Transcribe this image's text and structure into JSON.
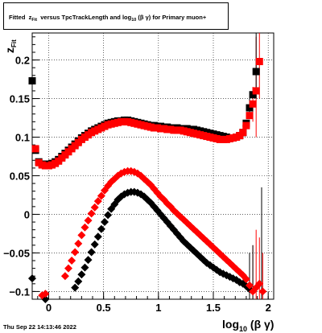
{
  "title": {
    "fitted": "Fitted",
    "z": "z",
    "z_sub": "Fit",
    "mid": "versus TpcTrackLength and log",
    "log_sub": "10",
    "tail": "(β  γ) for Primary muon+"
  },
  "footer": "Thu Sep 22 14:13:46 2022",
  "x_label": {
    "main": "log",
    "sub": "10",
    "tail": "(β γ)"
  },
  "y_label": {
    "main": "z",
    "sub": "Fit"
  },
  "chart_data": {
    "type": "scatter",
    "xlim": [
      -0.15,
      2.05
    ],
    "ylim": [
      -0.11,
      0.235
    ],
    "x_ticks": [
      "0",
      "0.5",
      "1",
      "1.5",
      "2"
    ],
    "x_tick_values": [
      0,
      0.5,
      1,
      1.5,
      2
    ],
    "y_ticks": [
      "−0.1",
      "−0.05",
      "0",
      "0.05",
      "0.1",
      "0.15",
      "0.2"
    ],
    "y_tick_values": [
      -0.1,
      -0.05,
      0,
      0.05,
      0.1,
      0.15,
      0.2
    ],
    "grid": true,
    "colors": {
      "black": "#000000",
      "red": "#ff0000"
    },
    "series": [
      {
        "color": "black",
        "marker": "square",
        "x": [
          -0.15,
          -0.12,
          -0.09,
          -0.06,
          -0.03,
          0,
          0.03,
          0.06,
          0.09,
          0.12,
          0.15,
          0.18,
          0.21,
          0.24,
          0.27,
          0.3,
          0.33,
          0.36,
          0.39,
          0.42,
          0.45,
          0.48,
          0.51,
          0.54,
          0.57,
          0.6,
          0.63,
          0.66,
          0.69,
          0.72,
          0.75,
          0.78,
          0.81,
          0.84,
          0.87,
          0.9,
          0.93,
          0.96,
          0.99,
          1.02,
          1.05,
          1.08,
          1.11,
          1.14,
          1.17,
          1.2,
          1.23,
          1.26,
          1.29,
          1.32,
          1.35,
          1.38,
          1.41,
          1.44,
          1.47,
          1.5,
          1.53,
          1.56,
          1.59,
          1.62,
          1.65,
          1.68,
          1.71,
          1.74,
          1.77,
          1.8,
          1.83,
          1.86,
          1.89
        ],
        "y": [
          0.173,
          0.083,
          0.068,
          0.065,
          0.065,
          0.065,
          0.066,
          0.068,
          0.071,
          0.075,
          0.079,
          0.083,
          0.087,
          0.091,
          0.095,
          0.099,
          0.102,
          0.105,
          0.108,
          0.11,
          0.112,
          0.114,
          0.116,
          0.118,
          0.119,
          0.12,
          0.121,
          0.121,
          0.122,
          0.122,
          0.121,
          0.12,
          0.119,
          0.118,
          0.117,
          0.116,
          0.115,
          0.115,
          0.114,
          0.114,
          0.113,
          0.113,
          0.112,
          0.112,
          0.112,
          0.111,
          0.111,
          0.111,
          0.11,
          0.11,
          0.109,
          0.108,
          0.107,
          0.106,
          0.105,
          0.104,
          0.103,
          0.102,
          0.101,
          0.1,
          0.099,
          0.099,
          0.1,
          0.102,
          0.106,
          0.118,
          0.138,
          0.155,
          0.185
        ]
      },
      {
        "color": "red",
        "marker": "square",
        "x": [
          -0.12,
          -0.09,
          -0.06,
          -0.03,
          0,
          0.03,
          0.06,
          0.09,
          0.12,
          0.15,
          0.18,
          0.21,
          0.24,
          0.27,
          0.3,
          0.33,
          0.36,
          0.39,
          0.42,
          0.45,
          0.48,
          0.51,
          0.54,
          0.57,
          0.6,
          0.63,
          0.66,
          0.69,
          0.72,
          0.75,
          0.78,
          0.81,
          0.84,
          0.87,
          0.9,
          0.93,
          0.96,
          0.99,
          1.02,
          1.05,
          1.08,
          1.11,
          1.14,
          1.17,
          1.2,
          1.23,
          1.26,
          1.29,
          1.32,
          1.35,
          1.38,
          1.41,
          1.44,
          1.47,
          1.5,
          1.53,
          1.56,
          1.59,
          1.62,
          1.65,
          1.68,
          1.71,
          1.74,
          1.77,
          1.8,
          1.83,
          1.86,
          1.89,
          1.92
        ],
        "y": [
          0.085,
          0.067,
          0.064,
          0.063,
          0.063,
          0.064,
          0.066,
          0.069,
          0.073,
          0.077,
          0.081,
          0.085,
          0.089,
          0.093,
          0.097,
          0.1,
          0.103,
          0.106,
          0.108,
          0.11,
          0.112,
          0.114,
          0.116,
          0.117,
          0.118,
          0.119,
          0.12,
          0.12,
          0.12,
          0.119,
          0.118,
          0.117,
          0.116,
          0.115,
          0.114,
          0.113,
          0.112,
          0.112,
          0.111,
          0.111,
          0.11,
          0.11,
          0.109,
          0.109,
          0.109,
          0.108,
          0.107,
          0.106,
          0.105,
          0.104,
          0.103,
          0.102,
          0.101,
          0.1,
          0.099,
          0.098,
          0.097,
          0.097,
          0.097,
          0.098,
          0.099,
          0.1,
          0.102,
          0.106,
          0.115,
          0.128,
          0.143,
          0.16,
          0.198
        ]
      },
      {
        "color": "black",
        "marker": "diamond",
        "x": [
          -0.15,
          -0.03,
          0.24,
          0.27,
          0.3,
          0.33,
          0.36,
          0.39,
          0.42,
          0.45,
          0.48,
          0.51,
          0.54,
          0.57,
          0.6,
          0.63,
          0.66,
          0.69,
          0.72,
          0.75,
          0.78,
          0.81,
          0.84,
          0.87,
          0.9,
          0.93,
          0.96,
          0.99,
          1.02,
          1.05,
          1.08,
          1.11,
          1.14,
          1.17,
          1.2,
          1.23,
          1.26,
          1.29,
          1.32,
          1.35,
          1.38,
          1.41,
          1.44,
          1.47,
          1.5,
          1.53,
          1.56,
          1.59,
          1.62,
          1.65,
          1.68,
          1.71,
          1.74,
          1.77,
          1.8,
          1.83
        ],
        "y": [
          -0.083,
          -0.132,
          -0.095,
          -0.087,
          -0.078,
          -0.069,
          -0.059,
          -0.049,
          -0.039,
          -0.029,
          -0.019,
          -0.01,
          -0.001,
          0.007,
          0.013,
          0.019,
          0.023,
          0.026,
          0.028,
          0.029,
          0.029,
          0.028,
          0.026,
          0.023,
          0.019,
          0.015,
          0.01,
          0.005,
          0,
          -0.005,
          -0.01,
          -0.015,
          -0.02,
          -0.025,
          -0.03,
          -0.035,
          -0.039,
          -0.043,
          -0.047,
          -0.051,
          -0.055,
          -0.059,
          -0.063,
          -0.066,
          -0.069,
          -0.072,
          -0.075,
          -0.077,
          -0.079,
          -0.081,
          -0.083,
          -0.085,
          -0.088,
          -0.09,
          -0.093,
          -0.097
        ]
      },
      {
        "color": "red",
        "marker": "diamond",
        "x": [
          -0.06,
          -0.03,
          0.15,
          0.18,
          0.21,
          0.24,
          0.27,
          0.3,
          0.33,
          0.36,
          0.39,
          0.42,
          0.45,
          0.48,
          0.51,
          0.54,
          0.57,
          0.6,
          0.63,
          0.66,
          0.69,
          0.72,
          0.75,
          0.78,
          0.81,
          0.84,
          0.87,
          0.9,
          0.93,
          0.96,
          0.99,
          1.02,
          1.05,
          1.08,
          1.11,
          1.14,
          1.17,
          1.2,
          1.23,
          1.26,
          1.29,
          1.32,
          1.35,
          1.38,
          1.41,
          1.44,
          1.47,
          1.5,
          1.53,
          1.56,
          1.59,
          1.62,
          1.65,
          1.68,
          1.71,
          1.74,
          1.77,
          1.8,
          1.83,
          1.86,
          1.89,
          1.92,
          1.95
        ],
        "y": [
          -0.105,
          -0.103,
          -0.08,
          -0.07,
          -0.06,
          -0.049,
          -0.038,
          -0.027,
          -0.017,
          -0.008,
          0.001,
          0.009,
          0.017,
          0.024,
          0.031,
          0.037,
          0.042,
          0.046,
          0.05,
          0.053,
          0.055,
          0.056,
          0.056,
          0.055,
          0.053,
          0.05,
          0.046,
          0.042,
          0.038,
          0.033,
          0.028,
          0.023,
          0.019,
          0.014,
          0.01,
          0.005,
          0.001,
          -0.003,
          -0.007,
          -0.011,
          -0.015,
          -0.019,
          -0.023,
          -0.027,
          -0.031,
          -0.035,
          -0.039,
          -0.043,
          -0.047,
          -0.051,
          -0.055,
          -0.059,
          -0.063,
          -0.067,
          -0.071,
          -0.075,
          -0.079,
          -0.084,
          -0.092,
          -0.1,
          -0.095,
          -0.09,
          -0.1
        ]
      }
    ],
    "error_bars": [
      {
        "color": "red",
        "x": 1.77,
        "y": 0.106,
        "lo": 0.098,
        "hi": 0.116
      },
      {
        "color": "red",
        "x": 1.86,
        "y": 0.143,
        "lo": 0.12,
        "hi": 0.165
      },
      {
        "color": "red",
        "x": 1.89,
        "y": 0.16,
        "lo": 0.1,
        "hi": 0.23
      },
      {
        "color": "red",
        "x": 1.92,
        "y": 0.198,
        "lo": 0.15,
        "hi": 0.235
      },
      {
        "color": "black",
        "x": 1.83,
        "y": 0.138,
        "lo": 0.125,
        "hi": 0.15
      },
      {
        "color": "black",
        "x": 1.89,
        "y": 0.185,
        "lo": 0.15,
        "hi": 0.235
      },
      {
        "color": "red",
        "x": 1.86,
        "y": -0.1,
        "lo": -0.11,
        "hi": -0.04
      },
      {
        "color": "red",
        "x": 1.89,
        "y": -0.095,
        "lo": -0.11,
        "hi": -0.02
      },
      {
        "color": "red",
        "x": 1.92,
        "y": -0.09,
        "lo": -0.11,
        "hi": -0.03
      },
      {
        "color": "red",
        "x": 1.95,
        "y": -0.1,
        "lo": -0.11,
        "hi": -0.05
      },
      {
        "color": "black",
        "x": 1.83,
        "y": -0.097,
        "lo": -0.11,
        "hi": -0.05
      },
      {
        "color": "black",
        "x": 1.86,
        "y": -0.1,
        "lo": -0.11,
        "hi": -0.04
      },
      {
        "color": "black",
        "x": 1.94,
        "y": -0.09,
        "lo": -0.11,
        "hi": 0.035
      }
    ]
  }
}
